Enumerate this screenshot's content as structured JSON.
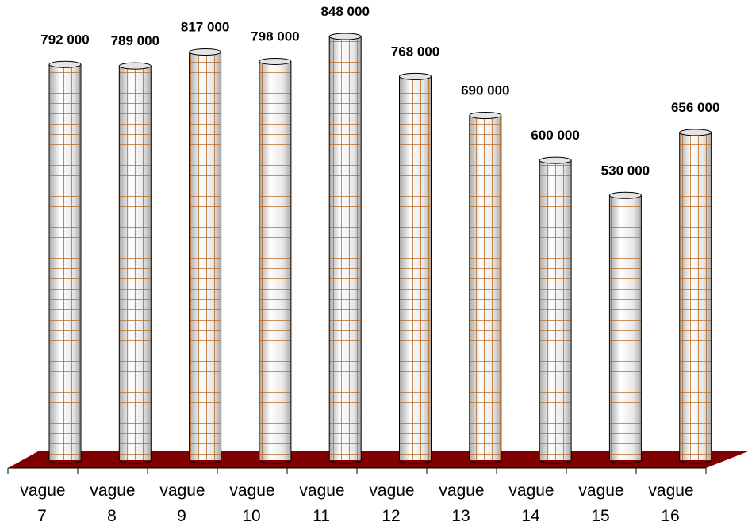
{
  "chart_data": {
    "type": "bar",
    "style": "3d-cylinder",
    "categories": [
      [
        "vague",
        "7"
      ],
      [
        "vague",
        "8"
      ],
      [
        "vague",
        "9"
      ],
      [
        "vague",
        "10"
      ],
      [
        "vague",
        "11"
      ],
      [
        "vague",
        "12"
      ],
      [
        "vague",
        "13"
      ],
      [
        "vague",
        "14"
      ],
      [
        "vague",
        "15"
      ],
      [
        "vague",
        "16"
      ]
    ],
    "values": [
      792000,
      789000,
      817000,
      798000,
      848000,
      768000,
      690000,
      600000,
      530000,
      656000
    ],
    "data_labels": [
      "792 000",
      "789 000",
      "817 000",
      "798 000",
      "848 000",
      "768 000",
      "690 000",
      "600 000",
      "530 000",
      "656 000"
    ],
    "title": "",
    "xlabel": "",
    "ylabel": "",
    "ylim": [
      0,
      848000
    ],
    "grid": false,
    "legend": "none",
    "colors": {
      "floor": "#800000",
      "pattern_line": "#b5651d",
      "bar_base": "#e8e8e8",
      "bar_highlight": "#ffffff",
      "bar_shadow": "#a8a8a8"
    }
  }
}
